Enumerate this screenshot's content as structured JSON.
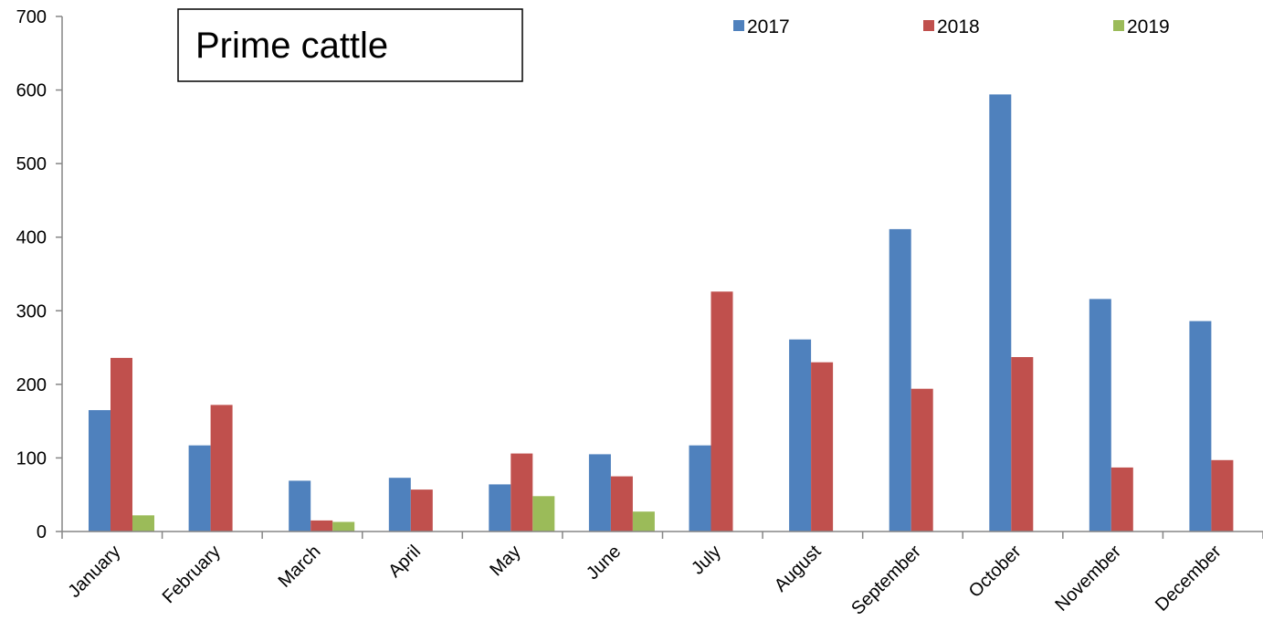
{
  "chart_data": {
    "type": "bar",
    "title": "Prime cattle",
    "categories": [
      "January",
      "February",
      "March",
      "April",
      "May",
      "June",
      "July",
      "August",
      "September",
      "October",
      "November",
      "December"
    ],
    "series": [
      {
        "name": "2017",
        "color": "#4F81BD",
        "values": [
          165,
          117,
          69,
          73,
          64,
          105,
          117,
          261,
          411,
          594,
          316,
          286
        ]
      },
      {
        "name": "2018",
        "color": "#C0504D",
        "values": [
          236,
          172,
          15,
          57,
          106,
          75,
          326,
          230,
          194,
          237,
          87,
          97
        ]
      },
      {
        "name": "2019",
        "color": "#9BBB59",
        "values": [
          22,
          null,
          13,
          null,
          48,
          27,
          null,
          null,
          null,
          null,
          null,
          null
        ]
      }
    ],
    "yticks": [
      "0",
      "100",
      "200",
      "300",
      "400",
      "500",
      "600",
      "700"
    ],
    "ylim": [
      0,
      700
    ],
    "grid": false,
    "legend": "top-right"
  }
}
